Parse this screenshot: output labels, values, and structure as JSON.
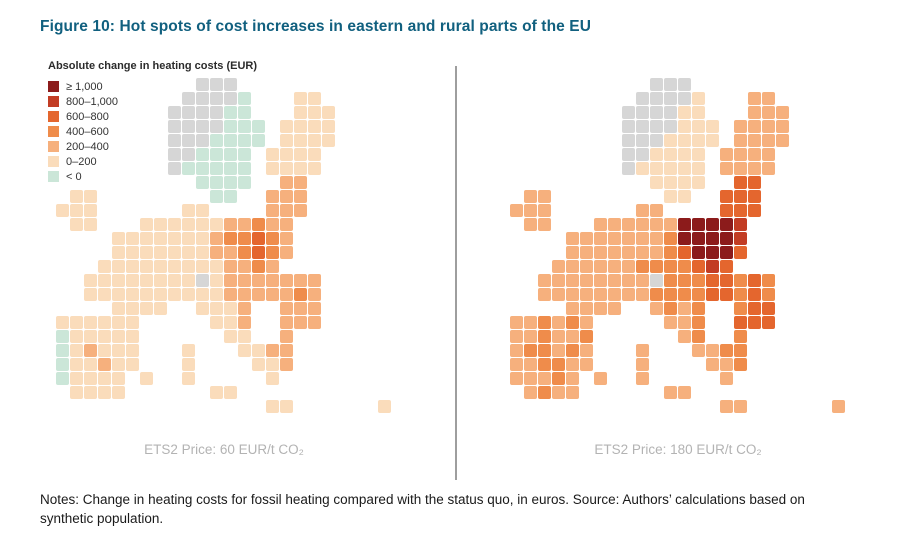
{
  "figure": {
    "title": "Figure 10: Hot spots of cost increases in eastern and rural parts of the EU",
    "title_color": "#11607f",
    "notes": "Notes: Change in heating costs for fossil heating compared with the status quo, in euros. Source: Authors’ calculations based on synthetic population."
  },
  "legend": {
    "title": "Absolute change in heating costs (EUR)",
    "no_data_color": "#d6d6d6",
    "items": [
      {
        "label": "≥ 1,000",
        "color": "#8c1b1b"
      },
      {
        "label": "800–1,000",
        "color": "#c23c24"
      },
      {
        "label": "600–800",
        "color": "#e4662e"
      },
      {
        "label": "400–600",
        "color": "#ef8c4b"
      },
      {
        "label": "200–400",
        "color": "#f6b07d"
      },
      {
        "label": "0–200",
        "color": "#fadcbb"
      },
      {
        "label": "< 0",
        "color": "#cbe6d8"
      }
    ]
  },
  "maps": [
    {
      "caption": "ETS2 Price: 60 EUR/t CO₂",
      "grid": [
        "...........ggg............",
        "..........gggg0...11......",
        ".........gggg00...111.....",
        ".........gggg000.1111.....",
        ".........ggg0000.1111.....",
        ".........gg0000.1111......",
        ".........g00000.1111......",
        "...........0000..22.......",
        "..11........00..222.......",
        ".111......11....222.......",
        "..11...11111122322........",
        ".....1111111233432........",
        ".....1111111223432........",
        "....1111111112232.........",
        "...11111111g12222222......",
        "...11111111112222232......",
        ".....1111..1112..222......",
        ".111111.....112..222......",
        ".011111......11..2........",
        ".012111...1...1122........",
        ".011211...1....112........",
        ".01111.1..1.....1.........",
        "..1111......11............",
        "................11......1."
      ]
    },
    {
      "caption": "ETS2 Price: 180 EUR/t CO₂",
      "grid": [
        "...........ggg............",
        "..........gggg1...22......",
        ".........gggg11...222.....",
        ".........gggg111.2222.....",
        ".........ggg1111.2222.....",
        ".........gg1111.2222......",
        ".........g11111.2222......",
        "...........1111..44.......",
        "..22........11..444.......",
        ".222......22....444.......",
        "..22...22222266665........",
        ".....2222222366665........",
        ".....2222222346664........",
        "....2222223333454.........",
        "...22222222g33344343......",
        "...22222222333344343......",
        ".....2222..2323..344......",
        ".223232.....223..444......",
        ".223223......23..3........",
        ".233232...2...2233........",
        ".223322...2....223........",
        ".22232.2..2.....2.........",
        "..2322......22............",
        "................22......2."
      ]
    }
  ],
  "chart_data": {
    "type": "heatmap",
    "title": "Figure 10: Hot spots of cost increases in eastern and rural parts of the EU",
    "variable": "Absolute change in heating costs (EUR)",
    "legend_position": "top-left",
    "legend_bins": [
      {
        "label": "≥ 1,000",
        "range_eur": [
          1000,
          null
        ]
      },
      {
        "label": "800–1,000",
        "range_eur": [
          800,
          1000
        ]
      },
      {
        "label": "600–800",
        "range_eur": [
          600,
          800
        ]
      },
      {
        "label": "400–600",
        "range_eur": [
          400,
          600
        ]
      },
      {
        "label": "200–400",
        "range_eur": [
          200,
          400
        ]
      },
      {
        "label": "0–200",
        "range_eur": [
          0,
          200
        ]
      },
      {
        "label": "< 0",
        "range_eur": [
          null,
          0
        ]
      }
    ],
    "panels": [
      {
        "caption": "ETS2 Price: 60 EUR/t CO₂",
        "ets2_price_eur_per_t_co2": 60,
        "pattern": "Most western and southern EU regions 0–200 EUR; Poland and the Baltics mostly 200–600 EUR with local 600–800 hot spots; Sweden and Portugal’s west coast below 0; Norway shown as no data."
      },
      {
        "caption": "ETS2 Price: 180 EUR/t CO₂",
        "ets2_price_eur_per_t_co2": 180,
        "pattern": "Poland largely ≥ 1,000 EUR (dark-red hot spot); Baltics, Czechia, Slovakia and Bulgaria 600–1,000 EUR; most other EU regions 200–600 EUR; Norway shown as no data."
      }
    ]
  }
}
